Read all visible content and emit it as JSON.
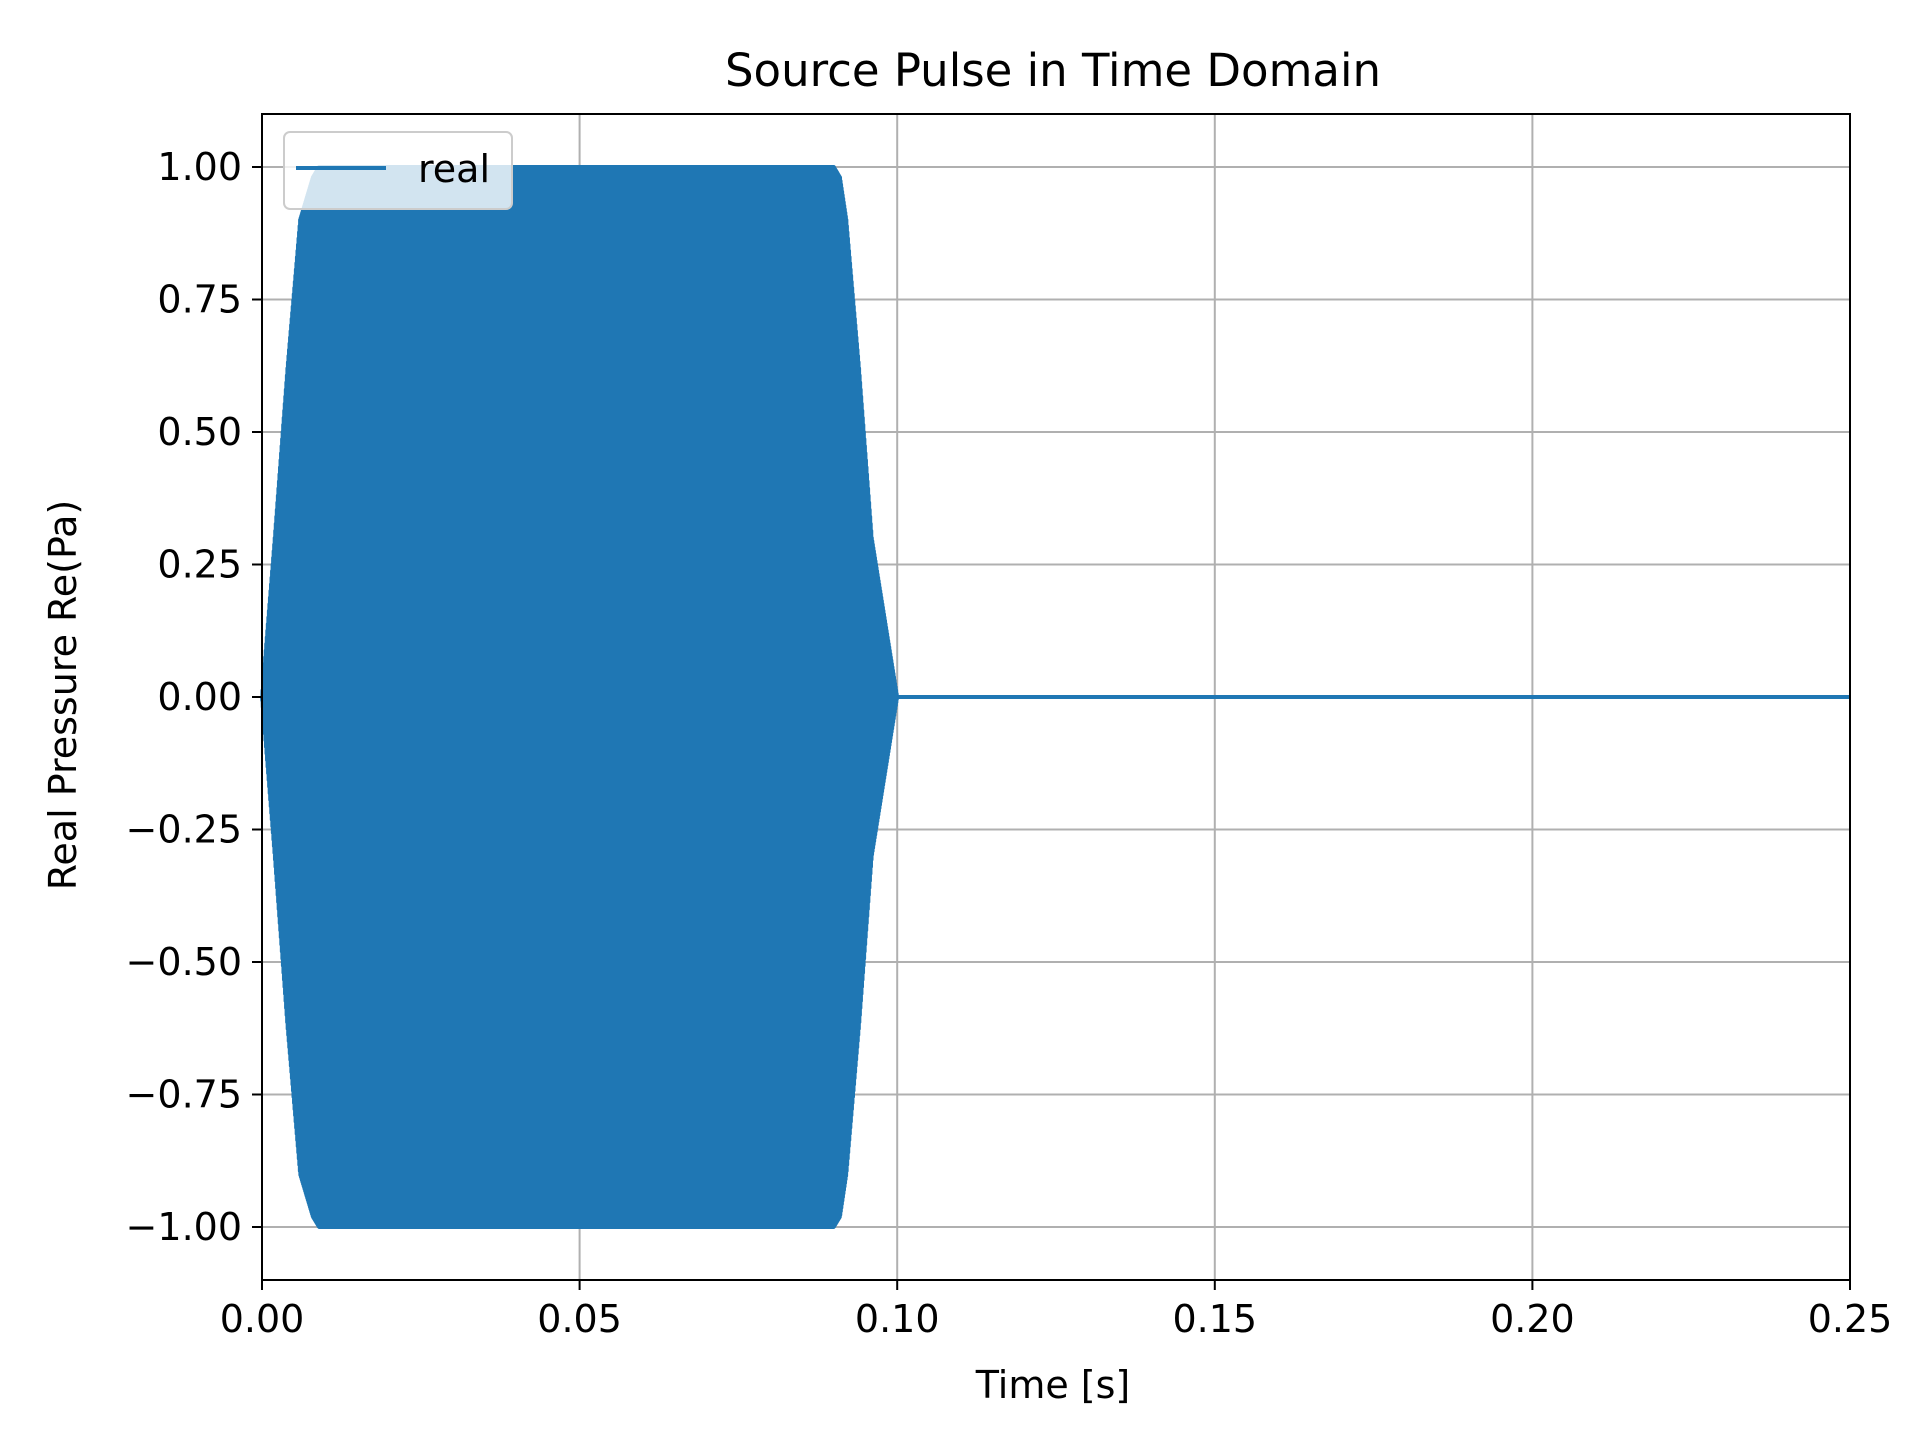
{
  "chart_data": {
    "type": "line",
    "title": "Source Pulse in Time Domain",
    "xlabel": "Time [s]",
    "ylabel": "Real Pressure Re(Pa)",
    "xlim": [
      0.0,
      0.25
    ],
    "ylim": [
      -1.1,
      1.1
    ],
    "x_ticks": [
      0.0,
      0.05,
      0.1,
      0.15,
      0.2,
      0.25
    ],
    "x_tick_labels": [
      "0.00",
      "0.05",
      "0.10",
      "0.15",
      "0.20",
      "0.25"
    ],
    "y_ticks": [
      1.0,
      0.75,
      0.5,
      0.25,
      0.0,
      -0.25,
      -0.5,
      -0.75,
      -1.0
    ],
    "y_tick_labels": [
      "1.00",
      "0.75",
      "0.50",
      "0.25",
      "0.00",
      "−0.25",
      "−0.50",
      "−0.75",
      "−1.00"
    ],
    "grid": true,
    "legend_position": "upper-left",
    "series": [
      {
        "name": "real",
        "color": "#1f77b4",
        "envelope_t": [
          0.0,
          0.002,
          0.004,
          0.006,
          0.008,
          0.009,
          0.01,
          0.09,
          0.091,
          0.092,
          0.094,
          0.096,
          0.098,
          0.1,
          0.25
        ],
        "envelope_amp": [
          0.0,
          0.3,
          0.62,
          0.9,
          0.98,
          1.0,
          1.0,
          1.0,
          0.98,
          0.9,
          0.62,
          0.3,
          0.15,
          0.0,
          0.0
        ]
      }
    ]
  }
}
